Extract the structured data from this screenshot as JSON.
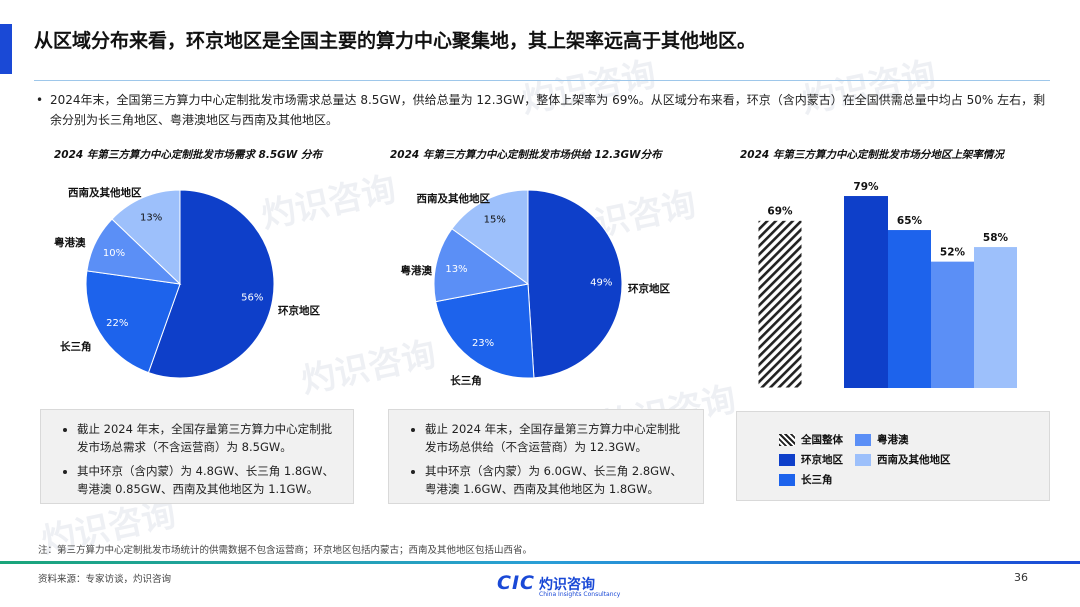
{
  "title": "从区域分布来看，环京地区是全国主要的算力中心聚集地，其上架率远高于其他地区。",
  "summary": "2024年末，全国第三方算力中心定制批发市场需求总量达 8.5GW，供给总量为 12.3GW，整体上架率为 69%。从区域分布来看，环京（含内蒙古）在全国供需总量中均占 50% 左右，剩余分别为长三角地区、粤港澳地区与西南及其他地区。",
  "colors": {
    "accent": "#1a49d6",
    "jingjing": "#0e3fc9",
    "changsanjiao": "#1d63ec",
    "yuegangao": "#5b8ff6",
    "xinan": "#9dc0fb"
  },
  "chart_data": [
    {
      "type": "pie",
      "title": "2024 年第三方算力中心定制批发市场需求 8.5GW 分布",
      "slices": [
        {
          "label": "环京地区",
          "value": 56,
          "pct": "56%"
        },
        {
          "label": "长三角",
          "value": 22,
          "pct": "22%"
        },
        {
          "label": "粤港澳",
          "value": 10,
          "pct": "10%"
        },
        {
          "label": "西南及其他地区",
          "value": 13,
          "pct": "13%"
        }
      ]
    },
    {
      "type": "pie",
      "title": "2024 年第三方算力中心定制批发市场供给 12.3GW分布",
      "slices": [
        {
          "label": "环京地区",
          "value": 49,
          "pct": "49%"
        },
        {
          "label": "长三角",
          "value": 23,
          "pct": "23%"
        },
        {
          "label": "粤港澳",
          "value": 13,
          "pct": "13%"
        },
        {
          "label": "西南及其他地区",
          "value": 15,
          "pct": "15%"
        }
      ]
    },
    {
      "type": "bar",
      "title": "2024 年第三方算力中心定制批发市场分地区上架率情况",
      "categories": [
        "全国整体",
        "环京地区",
        "长三角",
        "粤港澳",
        "西南及其他地区"
      ],
      "values": [
        69,
        79,
        65,
        52,
        58
      ],
      "value_labels": [
        "69%",
        "79%",
        "65%",
        "52%",
        "58%"
      ],
      "ylim": [
        0,
        100
      ],
      "legend": [
        "全国整体",
        "环京地区",
        "长三角",
        "粤港澳",
        "西南及其他地区"
      ]
    }
  ],
  "notes": {
    "demand": [
      "截止 2024 年末，全国存量第三方算力中心定制批发市场总需求（不含运营商）为 8.5GW。",
      "其中环京（含内蒙）为 4.8GW、长三角 1.8GW、粤港澳 0.85GW、西南及其他地区为 1.1GW。"
    ],
    "supply": [
      "截止 2024 年末，全国存量第三方算力中心定制批发市场总供给（不含运营商）为 12.3GW。",
      "其中环京（含内蒙）为 6.0GW、长三角 2.8GW、粤港澳 1.6GW、西南及其他地区为 1.8GW。"
    ]
  },
  "footnote": "注：第三方算力中心定制批发市场统计的供需数据不包含运营商；环京地区包括内蒙古；西南及其他地区包括山西省。",
  "source": "资料来源：专家访谈，灼识咨询",
  "logo": {
    "mark": "CIC",
    "name": "灼识咨询",
    "tagline": "China Insights Consultancy"
  },
  "page_number": "36"
}
